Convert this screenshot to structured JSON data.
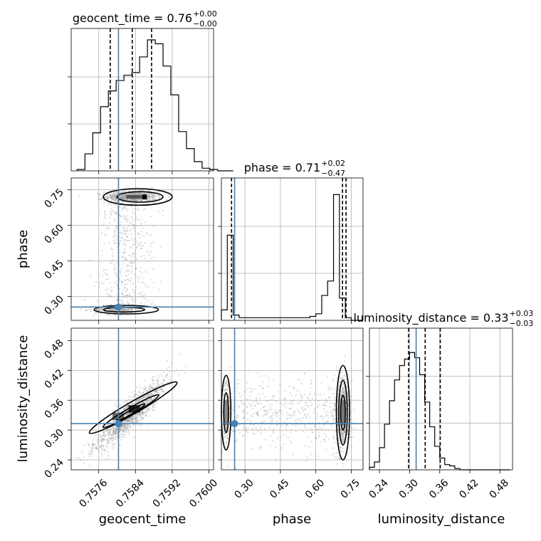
{
  "chart_data": {
    "type": "corner",
    "parameters": [
      "geocent_time",
      "phase",
      "luminosity_distance"
    ],
    "panels": {
      "geocent_time": {
        "title": {
          "param": "geocent_time",
          "median": "0.76",
          "plus": "+0.00",
          "minus": "−0.00"
        },
        "xlim": [
          0.757,
          0.7601
        ],
        "ticks": [
          0.7576,
          0.7584,
          0.7592,
          0.76
        ],
        "tick_labels": [
          "0.7576",
          "0.7584",
          "0.7592",
          "0.7600"
        ],
        "quantiles": [
          0.75785,
          0.75833,
          0.75875
        ],
        "truth": 0.75803,
        "hist_edges_start": 0.75713,
        "hist_bin_width": 0.00017,
        "hist_counts": [
          0.01,
          0.13,
          0.29,
          0.49,
          0.61,
          0.69,
          0.73,
          0.75,
          0.87,
          1.0,
          0.97,
          0.8,
          0.58,
          0.3,
          0.17,
          0.07,
          0.02,
          0.01,
          0,
          0
        ]
      },
      "phase": {
        "title": {
          "param": "phase",
          "median": "0.71",
          "plus": "+0.02",
          "minus": "−0.47"
        },
        "xlim": [
          0.2,
          0.8
        ],
        "ticks": [
          0.3,
          0.45,
          0.6,
          0.75
        ],
        "tick_labels": [
          "0.30",
          "0.45",
          "0.60",
          "0.75"
        ],
        "quantiles": [
          0.243,
          0.713,
          0.728
        ],
        "truth": 0.256,
        "hist_edges_start": 0.2,
        "hist_bin_width": 0.025,
        "hist_counts": [
          0.08,
          0.65,
          0.04,
          0.02,
          0.02,
          0.02,
          0.02,
          0.02,
          0.02,
          0.02,
          0.02,
          0.02,
          0.02,
          0.02,
          0.02,
          0.03,
          0.05,
          0.19,
          0.3,
          0.96,
          0.17,
          0.02,
          0.0,
          0.0
        ]
      },
      "luminosity_distance": {
        "title": {
          "param": "luminosity_distance",
          "median": "0.33",
          "plus": "+0.03",
          "minus": "−0.03"
        },
        "xlim": [
          0.22,
          0.505
        ],
        "ticks": [
          0.24,
          0.3,
          0.36,
          0.42,
          0.48
        ],
        "tick_labels": [
          "0.24",
          "0.30",
          "0.36",
          "0.42",
          "0.48"
        ],
        "quantiles": [
          0.298,
          0.331,
          0.361
        ],
        "truth": 0.313,
        "hist_edges_start": 0.22,
        "hist_bin_width": 0.01,
        "hist_counts": [
          0.02,
          0.06,
          0.17,
          0.35,
          0.53,
          0.69,
          0.8,
          0.85,
          0.9,
          0.86,
          0.73,
          0.52,
          0.33,
          0.18,
          0.09,
          0.04,
          0.03,
          0.01,
          0,
          0,
          0,
          0,
          0,
          0,
          0,
          0,
          0,
          0.0
        ]
      }
    },
    "axis_labels": {
      "geocent_time": "geocent_time",
      "phase": "phase",
      "luminosity_distance": "luminosity_distance"
    },
    "ylims": {
      "phase": [
        0.2,
        0.8
      ],
      "luminosity_distance": [
        0.22,
        0.505
      ]
    },
    "ytick_labels": {
      "phase": [
        "0.30",
        "0.45",
        "0.60",
        "0.75"
      ],
      "luminosity_distance": [
        "0.24",
        "0.30",
        "0.36",
        "0.42",
        "0.48"
      ]
    },
    "yticks": {
      "phase": [
        0.3,
        0.45,
        0.6,
        0.75
      ],
      "luminosity_distance": [
        0.24,
        0.3,
        0.36,
        0.42,
        0.48
      ]
    },
    "grid": true,
    "truth_color": "#4682b4",
    "scatter_color": "#999999"
  }
}
